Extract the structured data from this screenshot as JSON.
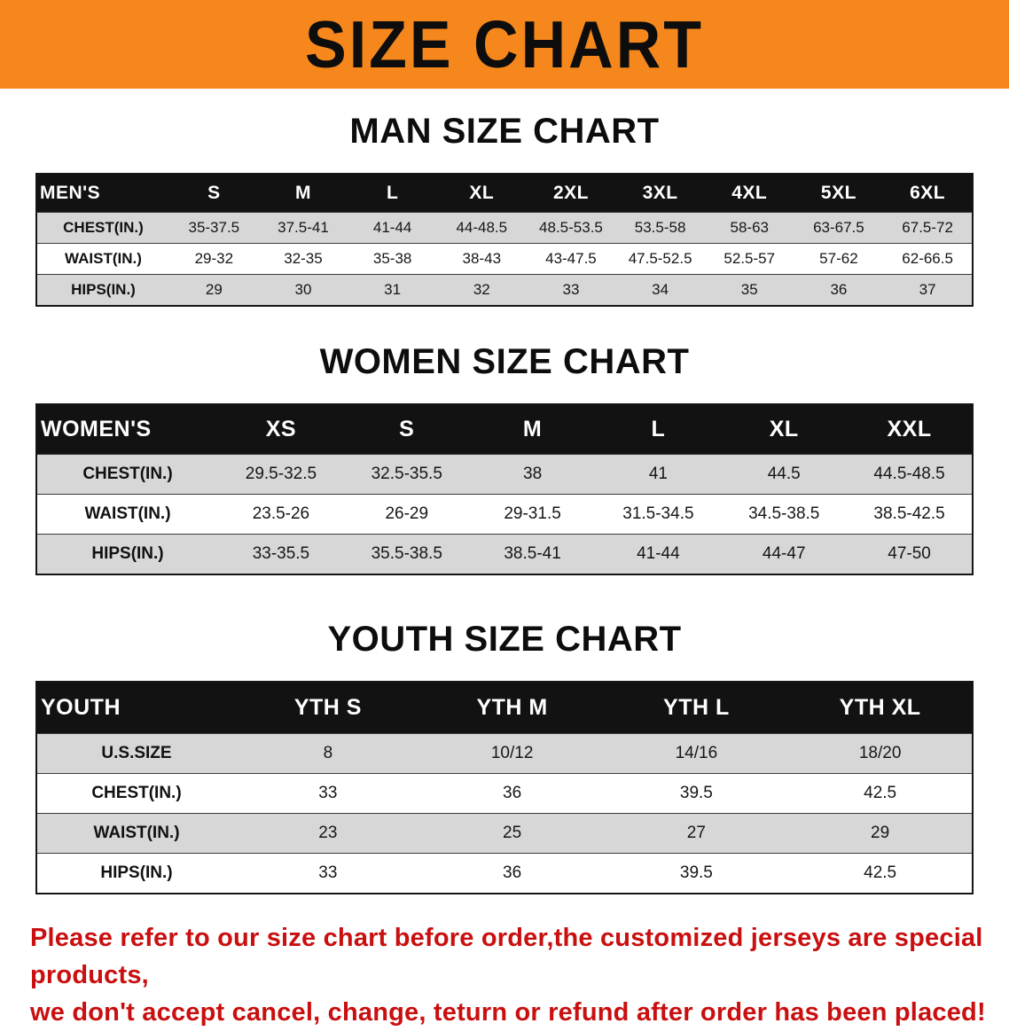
{
  "banner": {
    "title": "SIZE CHART",
    "bg_color": "#f6871d"
  },
  "sections": [
    {
      "id": "men",
      "title": "MAN SIZE CHART",
      "table": {
        "header": [
          "MEN'S",
          "S",
          "M",
          "L",
          "XL",
          "2XL",
          "3XL",
          "4XL",
          "5XL",
          "6XL"
        ],
        "rows": [
          {
            "label": "CHEST(IN.)",
            "values": [
              "35-37.5",
              "37.5-41",
              "41-44",
              "44-48.5",
              "48.5-53.5",
              "53.5-58",
              "58-63",
              "63-67.5",
              "67.5-72"
            ]
          },
          {
            "label": "WAIST(IN.)",
            "values": [
              "29-32",
              "32-35",
              "35-38",
              "38-43",
              "43-47.5",
              "47.5-52.5",
              "52.5-57",
              "57-62",
              "62-66.5"
            ]
          },
          {
            "label": "HIPS(IN.)",
            "values": [
              "29",
              "30",
              "31",
              "32",
              "33",
              "34",
              "35",
              "36",
              "37"
            ]
          }
        ]
      }
    },
    {
      "id": "women",
      "title": "WOMEN SIZE CHART",
      "table": {
        "header": [
          "WOMEN'S",
          "XS",
          "S",
          "M",
          "L",
          "XL",
          "XXL"
        ],
        "rows": [
          {
            "label": "CHEST(IN.)",
            "values": [
              "29.5-32.5",
              "32.5-35.5",
              "38",
              "41",
              "44.5",
              "44.5-48.5"
            ]
          },
          {
            "label": "WAIST(IN.)",
            "values": [
              "23.5-26",
              "26-29",
              "29-31.5",
              "31.5-34.5",
              "34.5-38.5",
              "38.5-42.5"
            ]
          },
          {
            "label": "HIPS(IN.)",
            "values": [
              "33-35.5",
              "35.5-38.5",
              "38.5-41",
              "41-44",
              "44-47",
              "47-50"
            ]
          }
        ]
      }
    },
    {
      "id": "youth",
      "title": "YOUTH SIZE CHART",
      "table": {
        "header": [
          "YOUTH",
          "YTH S",
          "YTH M",
          "YTH L",
          "YTH XL"
        ],
        "rows": [
          {
            "label": "U.S.SIZE",
            "values": [
              "8",
              "10/12",
              "14/16",
              "18/20"
            ]
          },
          {
            "label": "CHEST(IN.)",
            "values": [
              "33",
              "36",
              "39.5",
              "42.5"
            ]
          },
          {
            "label": "WAIST(IN.)",
            "values": [
              "23",
              "25",
              "27",
              "29"
            ]
          },
          {
            "label": "HIPS(IN.)",
            "values": [
              "33",
              "36",
              "39.5",
              "42.5"
            ]
          }
        ]
      }
    }
  ],
  "footer": {
    "line1": "Please refer to our size chart before order,the customized jerseys are special products,",
    "line2": "we don't accept cancel, change, teturn or refund after order has been placed!",
    "color": "#c90f0f"
  }
}
